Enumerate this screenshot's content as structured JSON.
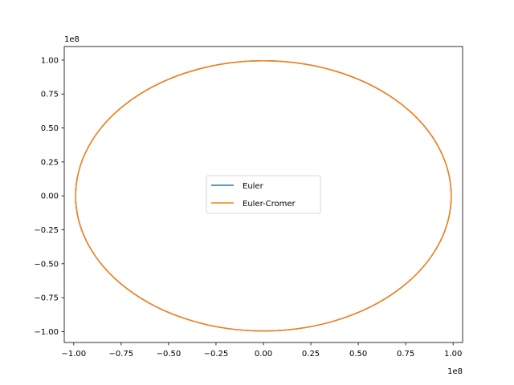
{
  "chart_data": {
    "type": "line",
    "title": "",
    "xlabel": "",
    "ylabel": "",
    "x_offset_text": "1e8",
    "y_offset_text": "1e8",
    "xlim": [
      -1.05,
      1.05
    ],
    "ylim": [
      -1.08,
      1.1
    ],
    "x_ticks": [
      -1.0,
      -0.75,
      -0.5,
      -0.25,
      0.0,
      0.25,
      0.5,
      0.75,
      1.0
    ],
    "x_tick_labels": [
      "−1.00",
      "−0.75",
      "−0.50",
      "−0.25",
      "0.00",
      "0.25",
      "0.50",
      "0.75",
      "1.00"
    ],
    "y_ticks": [
      -1.0,
      -0.75,
      -0.5,
      -0.25,
      0.0,
      0.25,
      0.5,
      0.75,
      1.0
    ],
    "y_tick_labels": [
      "−1.00",
      "−0.75",
      "−0.50",
      "−0.25",
      "0.00",
      "0.25",
      "0.50",
      "0.75",
      "1.00"
    ],
    "grid": false,
    "legend_position": "center",
    "series": [
      {
        "name": "Euler",
        "color": "#1f77b4",
        "shape": "circle",
        "center": [
          0,
          0
        ],
        "radius_x": 0.99,
        "radius_y": 0.995
      },
      {
        "name": "Euler-Cromer",
        "color": "#ff7f0e",
        "shape": "circle",
        "center": [
          0,
          0
        ],
        "radius_x": 0.99,
        "radius_y": 0.995
      }
    ]
  }
}
